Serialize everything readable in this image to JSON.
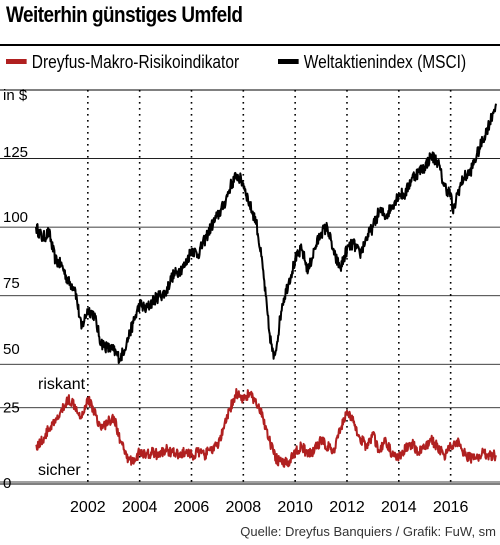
{
  "header": {
    "title": "Weiterhin günstiges Umfeld"
  },
  "source": "Quelle: Dreyfus Banquiers / Grafik: FuW, sm",
  "chart_data": [
    {
      "type": "line",
      "ylabel": "in $",
      "ylim": [
        45,
        150
      ],
      "yticks": [
        50,
        75,
        100,
        125
      ],
      "xlim": [
        2000.0,
        2017.75
      ],
      "xticks": [
        2002,
        2004,
        2006,
        2008,
        2010,
        2012,
        2014,
        2016
      ],
      "grid": "vertical dotted, horizontal solid",
      "legend": "top",
      "series": [
        {
          "name": "Weltaktienindex (MSCI)",
          "color": "#000000",
          "x": [
            2000.0,
            2000.25,
            2000.5,
            2000.75,
            2001.0,
            2001.25,
            2001.5,
            2001.75,
            2002.0,
            2002.25,
            2002.5,
            2002.75,
            2003.0,
            2003.25,
            2003.5,
            2003.75,
            2004.0,
            2004.25,
            2004.5,
            2004.75,
            2005.0,
            2005.25,
            2005.5,
            2005.75,
            2006.0,
            2006.25,
            2006.5,
            2006.75,
            2007.0,
            2007.25,
            2007.5,
            2007.75,
            2008.0,
            2008.25,
            2008.5,
            2008.75,
            2009.0,
            2009.17,
            2009.25,
            2009.5,
            2009.75,
            2010.0,
            2010.25,
            2010.5,
            2010.75,
            2011.0,
            2011.25,
            2011.5,
            2011.75,
            2012.0,
            2012.25,
            2012.5,
            2012.75,
            2013.0,
            2013.25,
            2013.5,
            2013.75,
            2014.0,
            2014.25,
            2014.5,
            2014.75,
            2015.0,
            2015.25,
            2015.5,
            2015.75,
            2016.0,
            2016.1,
            2016.25,
            2016.5,
            2016.75,
            2017.0,
            2017.25,
            2017.5,
            2017.75
          ],
          "values": [
            100,
            96,
            98,
            88,
            86,
            80,
            78,
            63,
            70,
            68,
            58,
            56,
            55,
            52,
            58,
            65,
            72,
            70,
            73,
            75,
            76,
            82,
            84,
            86,
            92,
            90,
            95,
            100,
            104,
            108,
            115,
            119,
            116,
            108,
            102,
            85,
            62,
            52,
            55,
            72,
            80,
            88,
            92,
            84,
            92,
            98,
            100,
            90,
            85,
            92,
            94,
            90,
            96,
            100,
            106,
            104,
            108,
            112,
            112,
            118,
            120,
            122,
            126,
            124,
            115,
            112,
            105,
            112,
            118,
            120,
            126,
            132,
            138,
            145
          ]
        },
        {
          "name": "Dreyfus-Makro-Risikoindikator",
          "color": "#b02020",
          "x": [
            2000.0,
            2000.25,
            2000.5,
            2000.75,
            2001.0,
            2001.25,
            2001.5,
            2001.75,
            2002.0,
            2002.25,
            2002.5,
            2002.75,
            2003.0,
            2003.25,
            2003.5,
            2003.75,
            2004.0,
            2004.25,
            2004.5,
            2004.75,
            2005.0,
            2005.25,
            2005.5,
            2005.75,
            2006.0,
            2006.25,
            2006.5,
            2006.75,
            2007.0,
            2007.25,
            2007.5,
            2007.75,
            2008.0,
            2008.25,
            2008.5,
            2008.75,
            2009.0,
            2009.25,
            2009.5,
            2009.75,
            2010.0,
            2010.25,
            2010.5,
            2010.75,
            2011.0,
            2011.25,
            2011.5,
            2011.75,
            2012.0,
            2012.25,
            2012.5,
            2012.75,
            2013.0,
            2013.25,
            2013.5,
            2013.75,
            2014.0,
            2014.25,
            2014.5,
            2014.75,
            2015.0,
            2015.25,
            2015.5,
            2015.75,
            2016.0,
            2016.25,
            2016.5,
            2016.75,
            2017.0,
            2017.25,
            2017.5,
            2017.75
          ],
          "values": [
            12,
            14,
            18,
            20,
            24,
            28,
            26,
            22,
            28,
            24,
            18,
            20,
            22,
            14,
            8,
            7,
            10,
            9,
            10,
            9,
            11,
            10,
            9,
            10,
            9,
            10,
            9,
            11,
            12,
            18,
            25,
            30,
            28,
            30,
            26,
            22,
            14,
            8,
            6,
            7,
            10,
            12,
            9,
            11,
            14,
            12,
            10,
            18,
            24,
            20,
            15,
            12,
            16,
            10,
            14,
            9,
            8,
            11,
            13,
            10,
            12,
            14,
            12,
            9,
            12,
            14,
            10,
            8,
            8,
            10,
            9,
            9
          ]
        }
      ]
    },
    {
      "type": "line",
      "ylim": [
        0,
        35
      ],
      "yticks": [
        0,
        25
      ],
      "annotations": [
        "riskant",
        "sicher"
      ]
    }
  ],
  "x_tick_labels": [
    "2002",
    "2004",
    "2006",
    "2008",
    "2010",
    "2012",
    "2014",
    "2016"
  ],
  "upper_y_labels": [
    "in $",
    "125",
    "100",
    "75",
    "50"
  ],
  "lower_y_labels": [
    "25",
    "0"
  ]
}
